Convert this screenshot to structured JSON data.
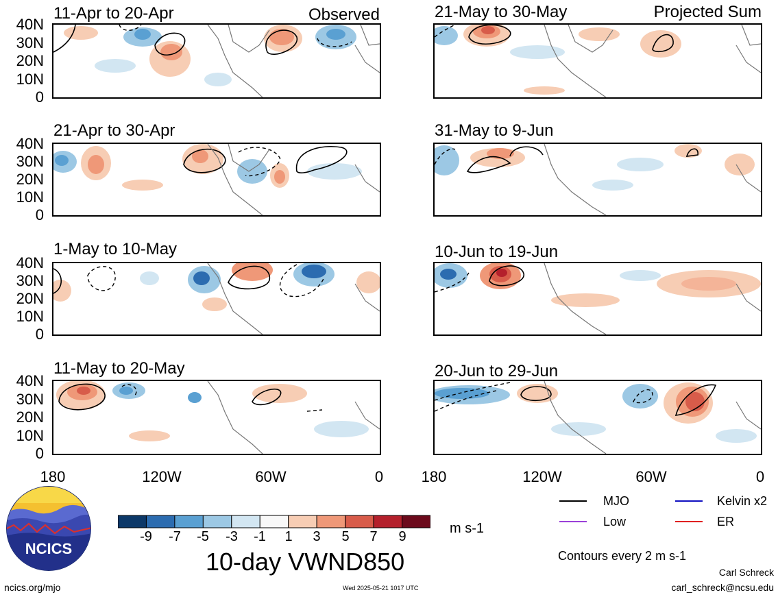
{
  "header": {
    "observed_label": "Observed",
    "projected_label": "Projected Sum"
  },
  "panels_left": [
    {
      "title": "11-Apr to 20-Apr"
    },
    {
      "title": "21-Apr to 30-Apr"
    },
    {
      "title": "1-May to 10-May"
    },
    {
      "title": "11-May to 20-May"
    }
  ],
  "panels_right": [
    {
      "title": "21-May to 30-May"
    },
    {
      "title": "31-May to 9-Jun"
    },
    {
      "title": "10-Jun to 19-Jun"
    },
    {
      "title": "20-Jun to 29-Jun"
    }
  ],
  "y_ticks": [
    "40N",
    "30N",
    "20N",
    "10N",
    "0"
  ],
  "x_ticks": [
    "180",
    "120W",
    "60W",
    "0"
  ],
  "colorbar": {
    "labels": [
      "-9",
      "-7",
      "-5",
      "-3",
      "-1",
      "1",
      "3",
      "5",
      "7",
      "9"
    ],
    "colors": [
      "#0c3868",
      "#2c6cb0",
      "#5aa0d2",
      "#9cc8e4",
      "#d2e6f2",
      "#f8f8f8",
      "#f7cdb4",
      "#ef9878",
      "#d85c4a",
      "#b4202c",
      "#6c0a1c"
    ],
    "units": "m s-1"
  },
  "chart_title": "10-day VWND850",
  "legend": {
    "mjo": "MJO",
    "kelvin": "Kelvin x2",
    "low": "Low",
    "er": "ER",
    "colors": {
      "mjo": "#000000",
      "kelvin": "#1010c0",
      "low": "#9a40d8",
      "er": "#e02020"
    }
  },
  "contours_note": "Contours every 2 m s-1",
  "footer": {
    "logo_text": "NCICS",
    "website": "ncics.org/mjo",
    "timestamp": "Wed 2025-05-21 1017 UTC",
    "author": "Carl Schreck",
    "email": "carl_schreck@ncsu.edu"
  }
}
